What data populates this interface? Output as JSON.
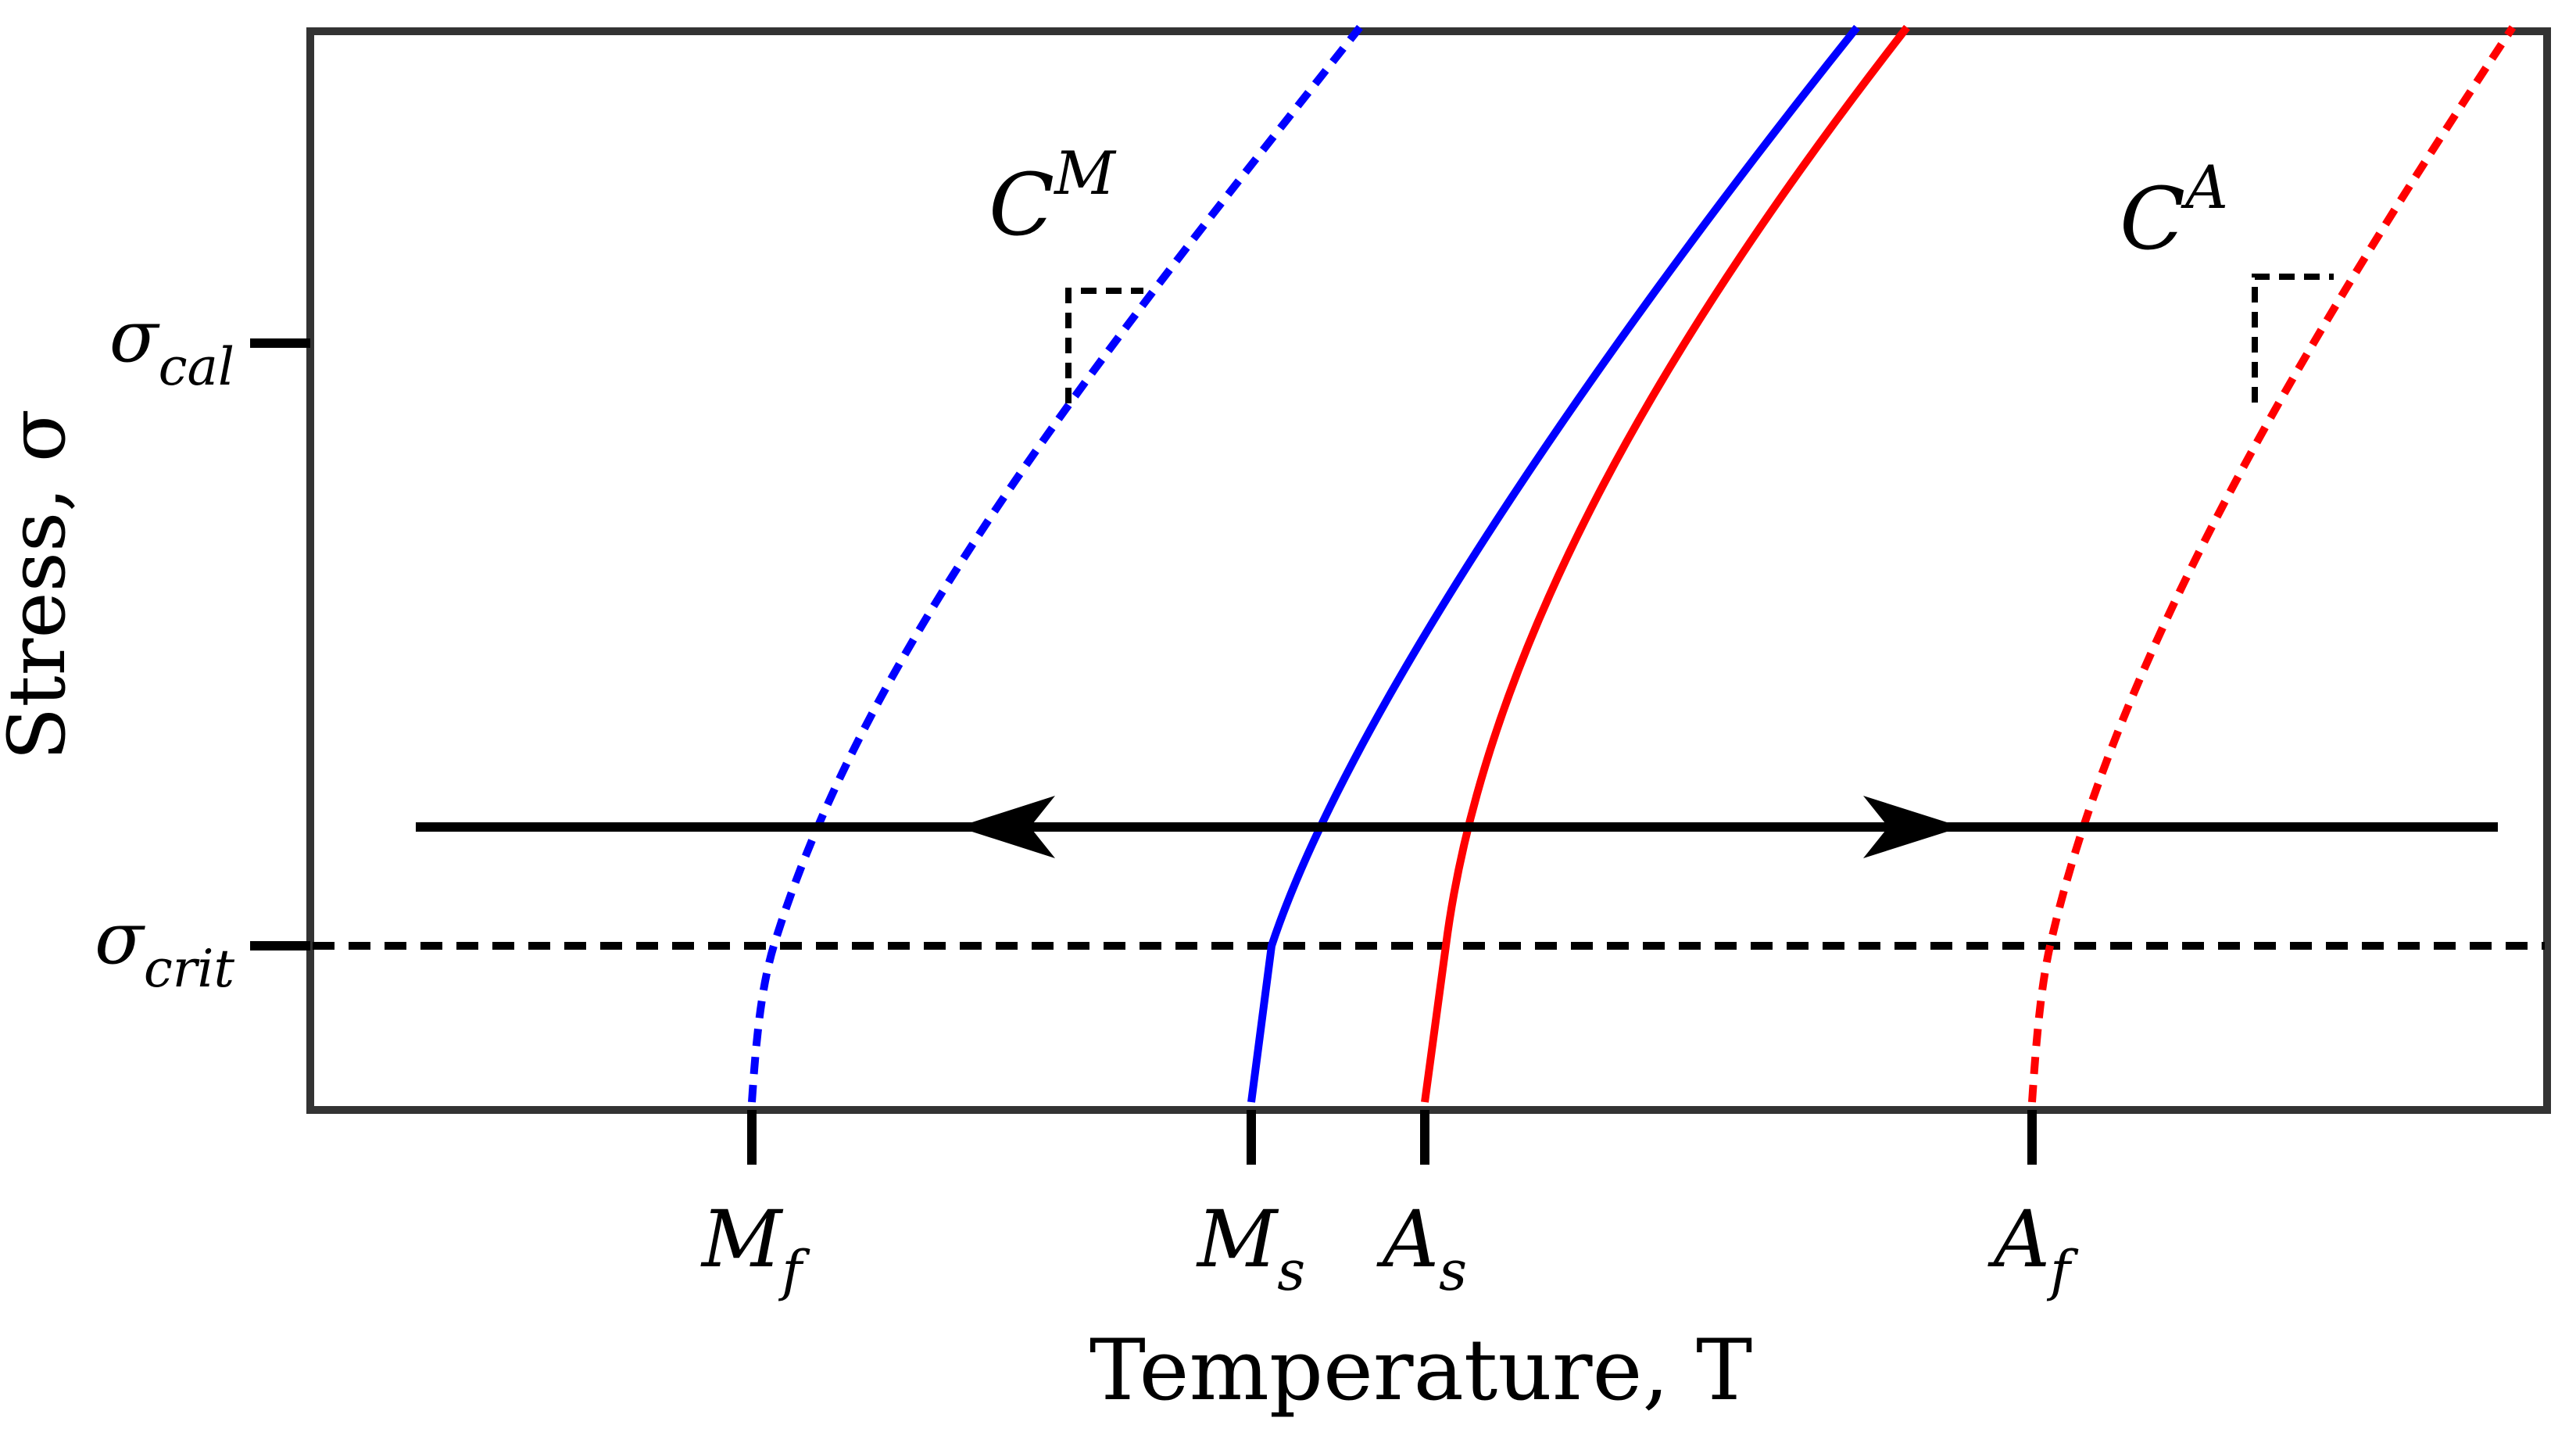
{
  "chart_data": {
    "type": "line",
    "title": "",
    "xlabel": "Temperature, T",
    "ylabel": "Stress, σ",
    "grid": false,
    "legend": "none",
    "x_ticks": [
      {
        "main": "M",
        "sub": "f"
      },
      {
        "main": "M",
        "sub": "s"
      },
      {
        "main": "A",
        "sub": "s"
      },
      {
        "main": "A",
        "sub": "f"
      }
    ],
    "y_ticks": [
      {
        "main": "σ",
        "sub": "cal"
      },
      {
        "main": "σ",
        "sub": "crit"
      }
    ],
    "series": [
      {
        "key": "mf",
        "style": "dashed",
        "color": "#0000ff"
      },
      {
        "key": "ms",
        "style": "solid",
        "color": "#0000ff"
      },
      {
        "key": "as",
        "style": "solid",
        "color": "#ff0000"
      },
      {
        "key": "af",
        "style": "dashed",
        "color": "#ff0000"
      }
    ],
    "annotations": [
      {
        "key": "CM",
        "main": "C",
        "sup": "M"
      },
      {
        "key": "CA",
        "main": "C",
        "sup": "A"
      }
    ],
    "reference_line": {
      "label_ref": "σ_crit",
      "style": "dashed"
    },
    "path_arrows": [
      "cooling (leftward)",
      "heating (rightward)"
    ]
  }
}
